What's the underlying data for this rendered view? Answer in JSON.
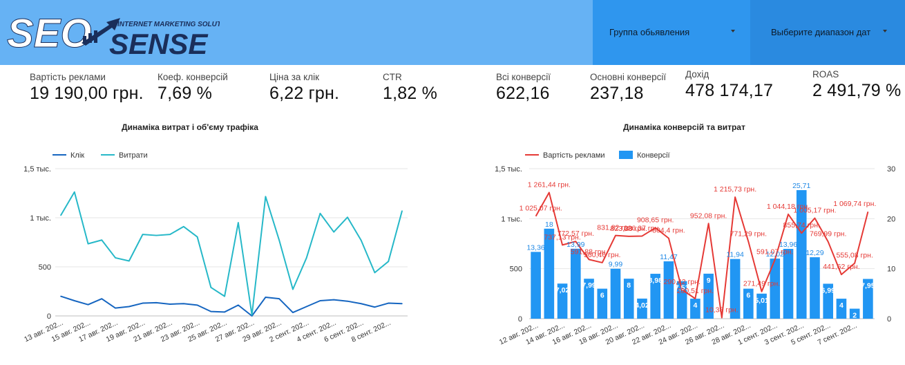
{
  "header": {
    "logo": {
      "main_left": "SEO",
      "main_right": "SENSE",
      "tagline": "INTERNET MARKETING SOLUTIONS"
    },
    "filters": [
      {
        "label": "Группа обьявления"
      },
      {
        "label": "Выберите диапазон дат"
      }
    ]
  },
  "kpis": [
    {
      "label": "Вартість реклами",
      "value": "19 190,00 грн."
    },
    {
      "label": "Коеф. конверсій",
      "value": "7,69 %"
    },
    {
      "label": "Ціна за клік",
      "value": "6,22 грн."
    },
    {
      "label": "CTR",
      "value": "1,82 %"
    },
    {
      "label": "Всі конверсії",
      "value": "622,16"
    },
    {
      "label": "Основні конверсії",
      "value": "237,18"
    },
    {
      "label": "Дохід",
      "value": "478 174,17"
    },
    {
      "label": "ROAS",
      "value": "2 491,79 %"
    }
  ],
  "colors": {
    "header": "#66b2f4",
    "click": "#1565c0",
    "spend": "#26b8c8",
    "ad_cost": "#e53935",
    "conversions": "#2196f3"
  },
  "chart_data": [
    {
      "type": "line",
      "title": "Динаміка витрат і об'єму трафіка",
      "y_ticks": [
        "0",
        "500",
        "1 тыс.",
        "1,5 тыс."
      ],
      "ylim": [
        0,
        1500
      ],
      "x_tick_labels": [
        "13 авг. 202...",
        "15 авг. 202...",
        "17 авг. 202...",
        "19 авг. 202...",
        "21 авг. 202...",
        "23 авг. 202...",
        "25 авг. 202...",
        "27 авг. 202...",
        "29 авг. 202...",
        "2 сент. 202...",
        "4 сент. 202...",
        "6 сент. 202...",
        "8 сент. 202..."
      ],
      "legend_position": "top-left",
      "series": [
        {
          "name": "Клік",
          "color": "#1565c0",
          "values": [
            200,
            155,
            115,
            175,
            80,
            95,
            130,
            135,
            120,
            125,
            110,
            45,
            40,
            110,
            0,
            190,
            175,
            35,
            95,
            155,
            165,
            150,
            125,
            90,
            130,
            125
          ]
        },
        {
          "name": "Витрати",
          "color": "#26b8c8",
          "values": [
            1025,
            1262,
            735,
            773,
            592,
            560,
            830,
            820,
            830,
            910,
            805,
            290,
            200,
            950,
            10,
            1216,
            771,
            271,
            591,
            1044,
            855,
            1005,
            770,
            441,
            555,
            1070
          ]
        }
      ]
    },
    {
      "type": "bar",
      "title": "Динаміка конверсій та витрат",
      "y_left_ticks": [
        "0",
        "500",
        "1 тыс.",
        "1,5 тыс."
      ],
      "y_right_ticks": [
        "0",
        "10",
        "20",
        "30"
      ],
      "ylim_left": [
        0,
        1500
      ],
      "ylim_right": [
        0,
        30
      ],
      "x_tick_labels": [
        "12 авг. 202...",
        "14 авг. 202...",
        "16 авг. 202...",
        "18 авг. 202...",
        "20 авг. 202...",
        "22 авг. 202...",
        "24 авг. 202...",
        "26 авг. 202...",
        "28 авг. 202...",
        "1 сент. 202...",
        "3 сент. 202...",
        "5 сент. 202...",
        "7 сент. 202..."
      ],
      "legend_position": "top-left",
      "bars": {
        "name": "Конверсії",
        "color": "#2196f3",
        "values": [
          13.36,
          18,
          7.02,
          13.99,
          7.99,
          6,
          9.99,
          8,
          4.02,
          8.98,
          11.47,
          7.51,
          4,
          9,
          0,
          11.94,
          6,
          5.01,
          12.02,
          13.96,
          25.71,
          12.29,
          6.99,
          4,
          2,
          7.95
        ],
        "labels": [
          "13,36",
          "18",
          "7,02",
          "13,99",
          "7,99",
          "6",
          "9,99",
          "8",
          "4,02",
          "8,98",
          "11,47",
          "7,51",
          "4",
          "9",
          "",
          "11,94",
          "6",
          "5,01",
          "12,02",
          "13,96",
          "25,71",
          "12,29",
          "6,99",
          "4",
          "2",
          "7,95"
        ]
      },
      "line": {
        "name": "Вартість реклами",
        "color": "#e53935",
        "values": [
          1025.07,
          1261.44,
          737.13,
          772.57,
          591.88,
          560.46,
          831.82,
          823.33,
          826.37,
          908.65,
          804.4,
          290.42,
          200.51,
          952.08,
          10.38,
          1215.73,
          771.29,
          271.49,
          591.07,
          1044.18,
          855.74,
          1005.17,
          769.99,
          441.62,
          555.08,
          1069.74
        ],
        "labels": [
          "1 025,07 грн.",
          "1 261,44 грн.",
          "737,13 грн.",
          "772,57 грн.",
          "591,88 грн.",
          "560,46 грн.",
          "831,82 грн.",
          "823,33 грн.",
          "826,37 грн.",
          "908,65 грн.",
          "804,4 грн.",
          "290,42 грн.",
          "200,51 грн.",
          "952,08 грн.",
          "10,38 грн.",
          "1 215,73 грн.",
          "771,29 грн.",
          "271,49 грн.",
          "591,07 грн.",
          "1 044,18 грн.",
          "855,74 грн.",
          "1 005,17 грн.",
          "769,99 грн.",
          "441,62 грн.",
          "555,08 грн.",
          "1 069,74 грн."
        ]
      }
    }
  ]
}
